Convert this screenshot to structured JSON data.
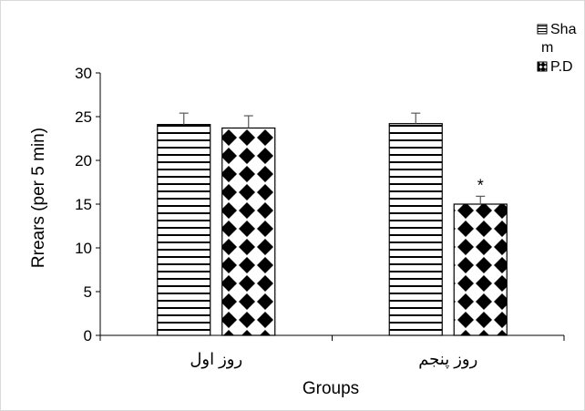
{
  "chart_data": {
    "type": "bar",
    "categories": [
      "روز اول",
      "روز پنجم"
    ],
    "series": [
      {
        "name": "Sham",
        "legend_lines": [
          "Sha",
          "m"
        ],
        "values": [
          24.1,
          24.2
        ],
        "errors": [
          1.3,
          1.2
        ],
        "pattern": "horizontal-stripes"
      },
      {
        "name": "P.D",
        "legend_lines": [
          "P.D"
        ],
        "values": [
          23.7,
          15.0
        ],
        "errors": [
          1.4,
          0.9
        ],
        "pattern": "diamond-checker"
      }
    ],
    "annotations": [
      {
        "series": 1,
        "category": 1,
        "text": "*"
      }
    ],
    "xlabel": "Groups",
    "ylabel": "Rrears (per 5 min)",
    "ylim": [
      0,
      30
    ],
    "yticks": [
      0,
      5,
      10,
      15,
      20,
      25,
      30
    ],
    "grid": false,
    "legend_position": "top-right"
  }
}
